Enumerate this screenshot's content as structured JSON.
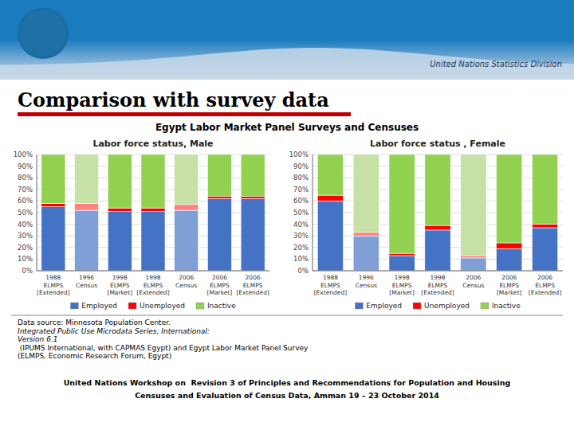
{
  "title": "Comparison with survey data",
  "subtitle": "Egypt Labor Market Panel Surveys and Censuses",
  "annotations": [
    "United Nations Statistics Division",
    "Data source: Minnesota Population Center. ",
    "Integrated Public Use Microdata Series, International:\nVersion 6.1",
    " (IPUMS International, with CAPMAS Egypt) and Egypt Labor Market Panel Survey\n(ELMPS, Economic Research Forum, Egypt)",
    "United Nations Workshop on  Revision 3 of Principles and Recommendations for Population and Housing",
    "Censuses and Evaluation of Census Data, Amman 19 – 23 October 2014"
  ],
  "chart_data": [
    {
      "type": "bar",
      "stacked": true,
      "title": "Labor force status, Male",
      "categories": [
        "1988\nELMPS\n[Extended]",
        "1996\nCensus",
        "1998\nELMPS\n[Market]",
        "1998\nELMPS\n[Extended]",
        "2006\nCensus",
        "2006\nELMPS\n[Market]",
        "2006\nELMPS\n[Extended]"
      ],
      "series": [
        {
          "name": "Employed",
          "color": "#4472C4",
          "colors": [
            "#4472C4",
            "#7F9FD6",
            "#4472C4",
            "#4472C4",
            "#7F9FD6",
            "#4472C4",
            "#4472C4"
          ],
          "values": [
            55,
            52,
            51,
            51,
            52,
            62,
            62
          ]
        },
        {
          "name": "Unemployed",
          "color": "#FF0000",
          "colors": [
            "#FF0000",
            "#FF8080",
            "#FF0000",
            "#FF0000",
            "#FF8080",
            "#FF0000",
            "#FF0000"
          ],
          "values": [
            3,
            6,
            3,
            3,
            5,
            2,
            2
          ]
        },
        {
          "name": "Inactive",
          "color": "#92D050",
          "colors": [
            "#92D050",
            "#C6E0A5",
            "#92D050",
            "#92D050",
            "#C6E0A5",
            "#92D050",
            "#92D050"
          ],
          "values": [
            42,
            42,
            46,
            46,
            43,
            36,
            36
          ]
        }
      ],
      "ylim": [
        0,
        100
      ],
      "yticks": [
        {
          "value": 0,
          "label": "0%"
        },
        {
          "value": 10,
          "label": "10%"
        },
        {
          "value": 20,
          "label": "20%"
        },
        {
          "value": 30,
          "label": "30%"
        },
        {
          "value": 40,
          "label": "40%"
        },
        {
          "value": 50,
          "label": "50%"
        },
        {
          "value": 60,
          "label": "60%"
        },
        {
          "value": 70,
          "label": "70%"
        },
        {
          "value": 80,
          "label": "80%"
        },
        {
          "value": 90,
          "label": "90%"
        },
        {
          "value": 100,
          "label": "100%"
        }
      ],
      "grid": true,
      "legend": "bottom"
    },
    {
      "type": "bar",
      "stacked": true,
      "title": "Labor force status , Female",
      "categories": [
        "1988\nELMPS\n[Extended]",
        "1996\nCensus",
        "1998\nELMPS\n[Market]",
        "1998\nELMPS\n[Extended]",
        "2006\nCensus",
        "2006\nELMPS\n[Market]",
        "2006\nELMPS\n[Extended]"
      ],
      "series": [
        {
          "name": "Employed",
          "color": "#4472C4",
          "colors": [
            "#4472C4",
            "#7F9FD6",
            "#4472C4",
            "#4472C4",
            "#7F9FD6",
            "#4472C4",
            "#4472C4"
          ],
          "values": [
            60,
            30,
            13,
            35,
            11,
            19,
            37
          ]
        },
        {
          "name": "Unemployed",
          "color": "#FF0000",
          "colors": [
            "#FF0000",
            "#FF8080",
            "#FF0000",
            "#FF0000",
            "#FF8080",
            "#FF0000",
            "#FF0000"
          ],
          "values": [
            5,
            3,
            2,
            4,
            2,
            5,
            3
          ]
        },
        {
          "name": "Inactive",
          "color": "#92D050",
          "colors": [
            "#92D050",
            "#C6E0A5",
            "#92D050",
            "#92D050",
            "#C6E0A5",
            "#92D050",
            "#92D050"
          ],
          "values": [
            35,
            67,
            85,
            61,
            87,
            76,
            60
          ]
        }
      ],
      "ylim": [
        0,
        100
      ],
      "yticks": [
        {
          "value": 0,
          "label": "0%"
        },
        {
          "value": 10,
          "label": "10%"
        },
        {
          "value": 20,
          "label": "20%"
        },
        {
          "value": 30,
          "label": "30%"
        },
        {
          "value": 40,
          "label": "40%"
        },
        {
          "value": 50,
          "label": "50%"
        },
        {
          "value": 60,
          "label": "60%"
        },
        {
          "value": 70,
          "label": "70%"
        },
        {
          "value": 80,
          "label": "80%"
        },
        {
          "value": 90,
          "label": "90%"
        },
        {
          "value": 100,
          "label": "100%"
        }
      ],
      "grid": true,
      "legend": "bottom"
    }
  ]
}
